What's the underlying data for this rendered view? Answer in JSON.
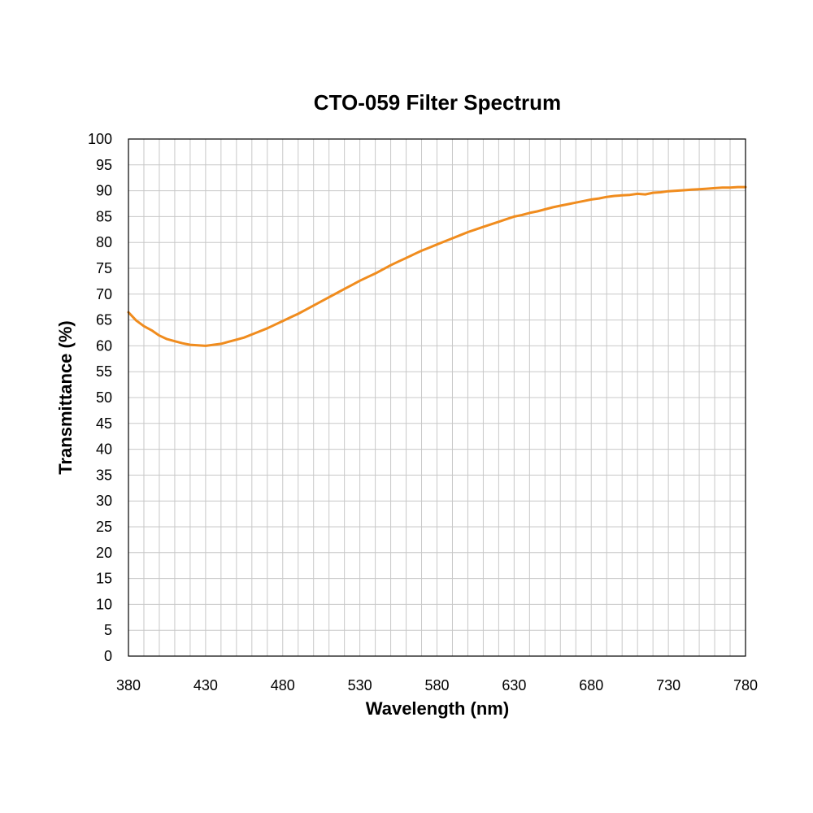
{
  "chart_data": {
    "type": "line",
    "title": "CTO-059 Filter Spectrum",
    "xlabel": "Wavelength (nm)",
    "ylabel": "Transmittance (%)",
    "xlim": [
      380,
      780
    ],
    "ylim": [
      0,
      100
    ],
    "x_ticks": [
      380,
      430,
      480,
      530,
      580,
      630,
      680,
      730,
      780
    ],
    "y_ticks": [
      0,
      5,
      10,
      15,
      20,
      25,
      30,
      35,
      40,
      45,
      50,
      55,
      60,
      65,
      70,
      75,
      80,
      85,
      90,
      95,
      100
    ],
    "x_minor_step": 10,
    "grid": true,
    "legend": "none",
    "series": [
      {
        "color": "#f08c1e",
        "x": [
          380,
          385,
          390,
          395,
          400,
          405,
          410,
          415,
          420,
          425,
          430,
          435,
          440,
          445,
          450,
          455,
          460,
          465,
          470,
          475,
          480,
          485,
          490,
          495,
          500,
          505,
          510,
          515,
          520,
          525,
          530,
          535,
          540,
          545,
          550,
          555,
          560,
          565,
          570,
          575,
          580,
          585,
          590,
          595,
          600,
          605,
          610,
          615,
          620,
          625,
          630,
          635,
          640,
          645,
          650,
          655,
          660,
          665,
          670,
          675,
          680,
          685,
          690,
          695,
          700,
          705,
          710,
          715,
          720,
          725,
          730,
          735,
          740,
          745,
          750,
          755,
          760,
          765,
          770,
          775,
          780
        ],
        "y": [
          66.5,
          64.9,
          63.8,
          63.0,
          62.0,
          61.3,
          60.9,
          60.5,
          60.2,
          60.1,
          60.0,
          60.2,
          60.4,
          60.8,
          61.2,
          61.6,
          62.2,
          62.8,
          63.4,
          64.1,
          64.8,
          65.5,
          66.2,
          67.0,
          67.8,
          68.6,
          69.4,
          70.2,
          71.0,
          71.8,
          72.6,
          73.3,
          74.0,
          74.8,
          75.6,
          76.3,
          77.0,
          77.7,
          78.4,
          79.0,
          79.6,
          80.2,
          80.8,
          81.4,
          82.0,
          82.5,
          83.0,
          83.5,
          84.0,
          84.5,
          85.0,
          85.3,
          85.7,
          86.0,
          86.4,
          86.8,
          87.1,
          87.4,
          87.7,
          88.0,
          88.3,
          88.5,
          88.8,
          89.0,
          89.1,
          89.2,
          89.4,
          89.3,
          89.6,
          89.7,
          89.9,
          90.0,
          90.1,
          90.2,
          90.3,
          90.4,
          90.5,
          90.6,
          90.6,
          90.7,
          90.7
        ]
      }
    ]
  }
}
